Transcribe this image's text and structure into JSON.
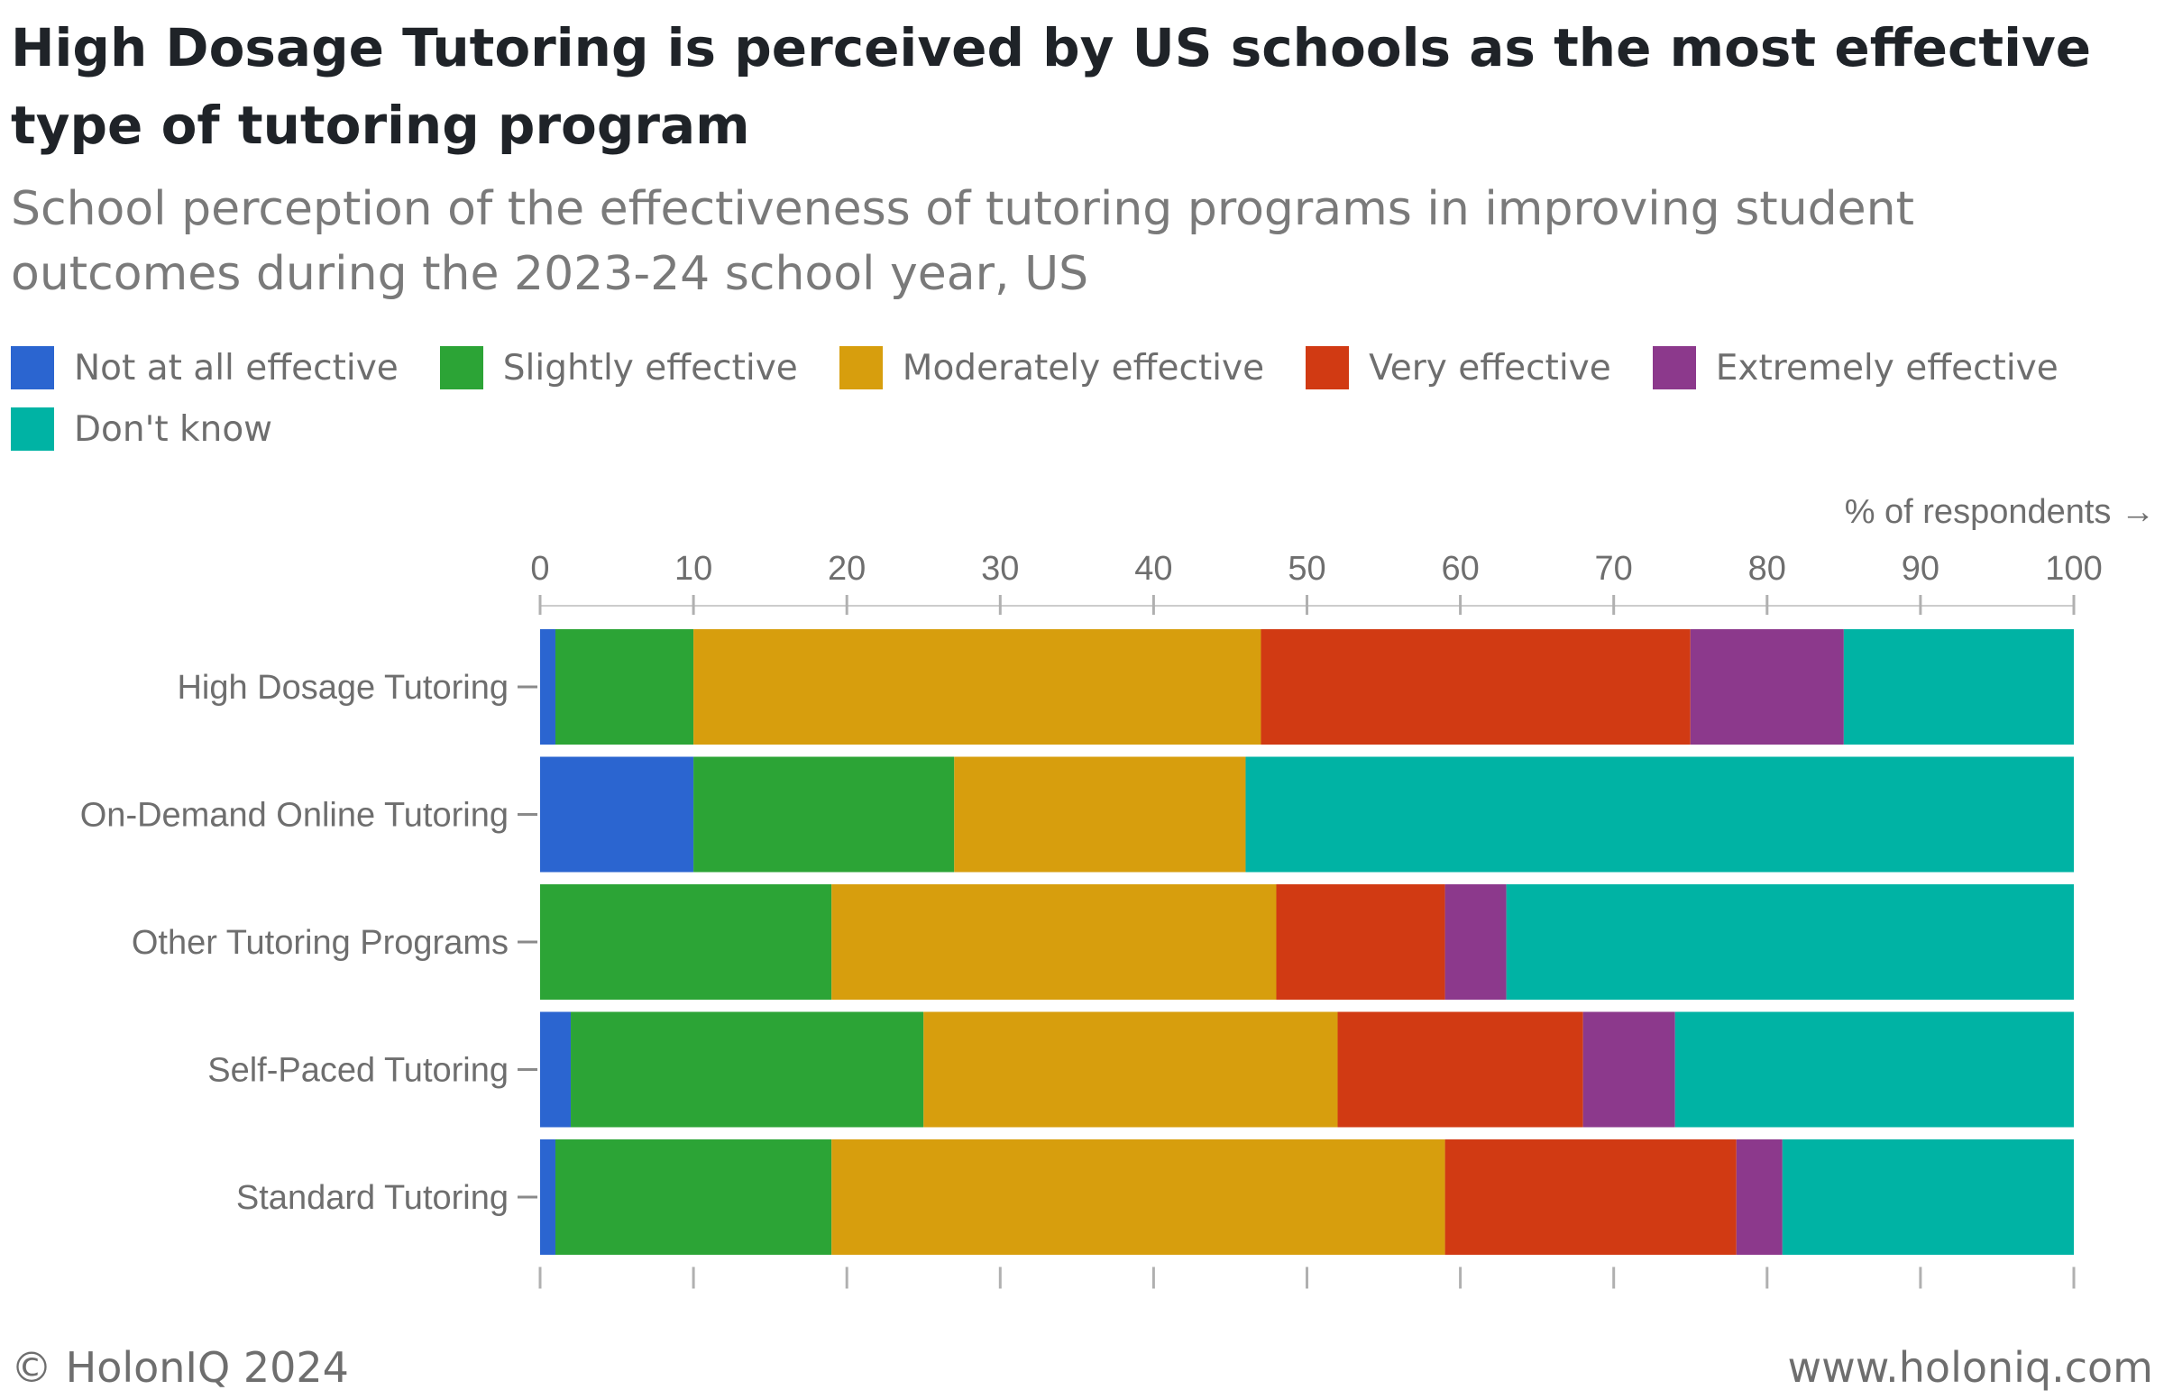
{
  "title": "High Dosage Tutoring is perceived by US schools as the most effective type of tutoring program",
  "subtitle": "School perception of the effectiveness of tutoring programs in improving student outcomes during the 2023-24 school year, US",
  "footer": {
    "copyright": "© HolonIQ 2024",
    "website": "www.holoniq.com"
  },
  "chart_data": {
    "type": "bar",
    "orientation": "horizontal",
    "stacked": true,
    "xlabel": "% of respondents →",
    "ylabel": "",
    "xlim": [
      0,
      100
    ],
    "xticks": [
      "0",
      "10",
      "20",
      "30",
      "40",
      "50",
      "60",
      "70",
      "80",
      "90",
      "100"
    ],
    "categories": [
      "High Dosage Tutoring",
      "On-Demand Online Tutoring",
      "Other Tutoring Programs",
      "Self-Paced Tutoring",
      "Standard Tutoring"
    ],
    "legend_position": "top-left",
    "grid": false,
    "series": [
      {
        "name": "Not at all effective",
        "color": "#2b65d0",
        "values": [
          1,
          10,
          0,
          2,
          1
        ]
      },
      {
        "name": "Slightly effective",
        "color": "#2ca436",
        "values": [
          9,
          17,
          19,
          23,
          18
        ]
      },
      {
        "name": "Moderately effective",
        "color": "#d79e0d",
        "values": [
          37,
          19,
          29,
          27,
          40
        ]
      },
      {
        "name": "Very effective",
        "color": "#d13a13",
        "values": [
          28,
          0,
          11,
          16,
          19
        ]
      },
      {
        "name": "Extremely effective",
        "color": "#8c398c",
        "values": [
          10,
          0,
          4,
          6,
          3
        ]
      },
      {
        "name": "Don't know",
        "color": "#00b3a4",
        "values": [
          15,
          54,
          37,
          26,
          19
        ]
      }
    ]
  }
}
